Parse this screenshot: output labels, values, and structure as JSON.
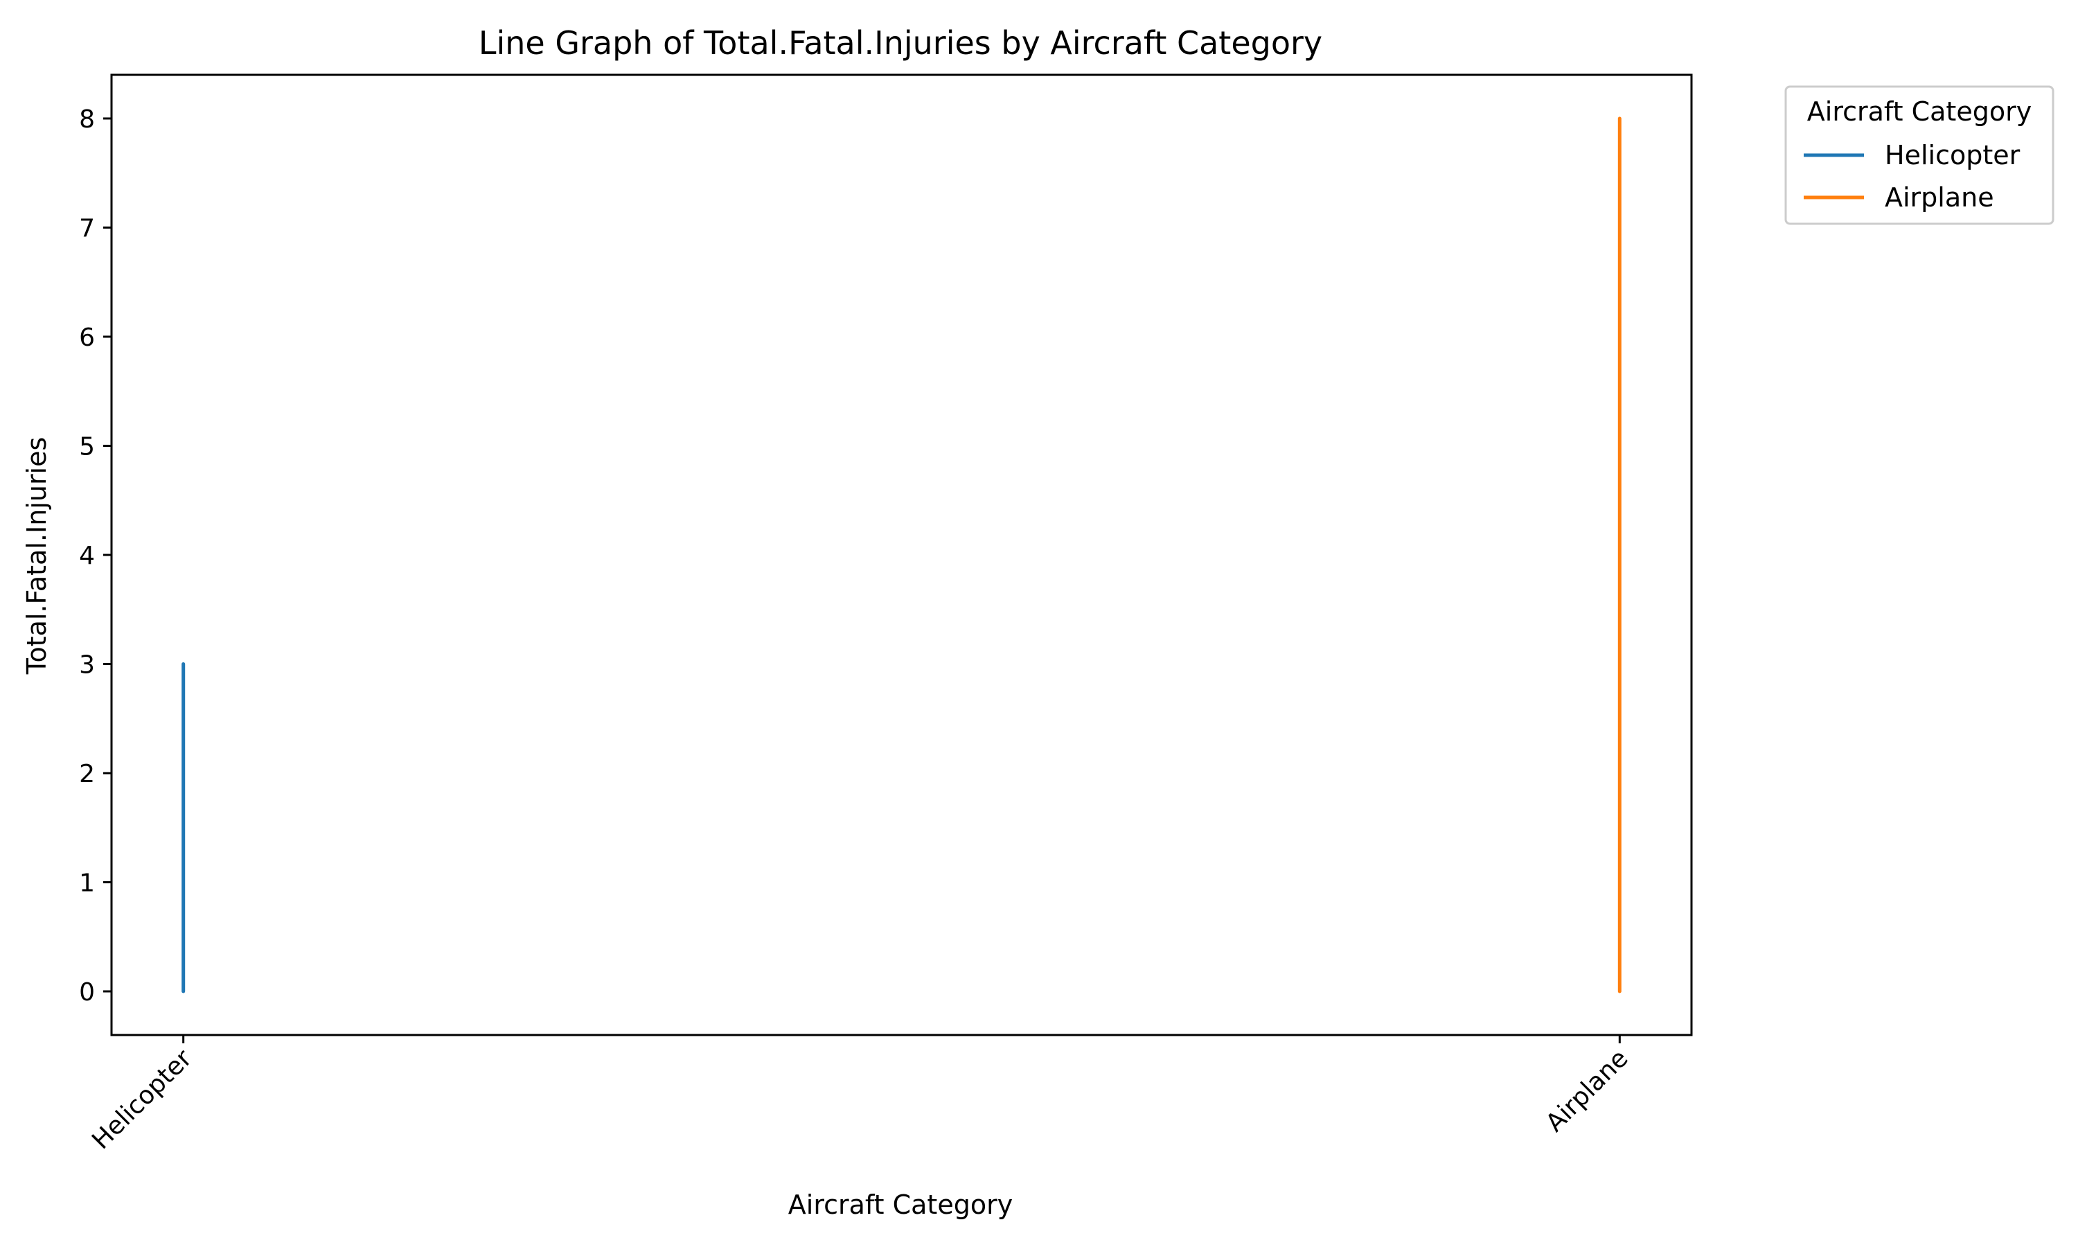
{
  "chart_data": {
    "type": "line",
    "title": "Line Graph of Total.Fatal.Injuries by Aircraft Category",
    "xlabel": "Aircraft Category",
    "ylabel": "Total.Fatal.Injuries",
    "categories": [
      "Helicopter",
      "Airplane"
    ],
    "yticks": [
      "0",
      "1",
      "2",
      "3",
      "4",
      "5",
      "6",
      "7",
      "8"
    ],
    "ylim": [
      -0.4,
      8.4
    ],
    "grid": false,
    "legend": {
      "title": "Aircraft Category",
      "position": "outside-top-right"
    },
    "series": [
      {
        "name": "Helicopter",
        "color": "#1f77b4",
        "x": [
          "Helicopter",
          "Helicopter",
          "Helicopter",
          "Helicopter"
        ],
        "y": [
          0,
          1,
          2,
          3
        ]
      },
      {
        "name": "Airplane",
        "color": "#ff7f0e",
        "x": [
          "Airplane",
          "Airplane"
        ],
        "y": [
          0,
          8
        ]
      }
    ]
  }
}
